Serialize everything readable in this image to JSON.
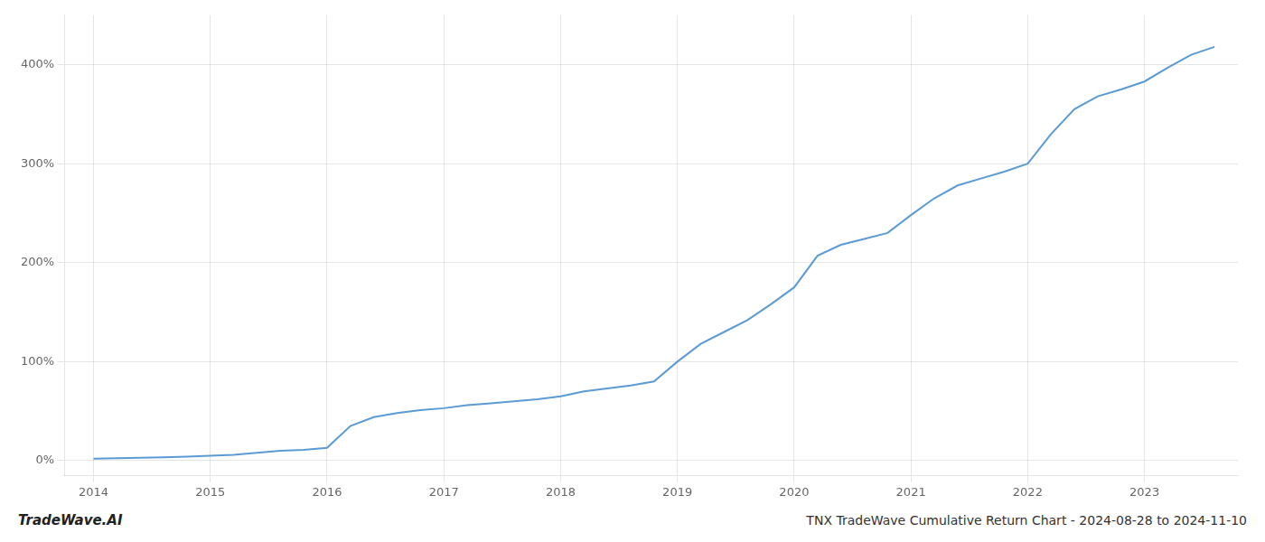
{
  "chart_data": {
    "type": "line",
    "annotations": [
      "TradeWave.AI",
      "TNX TradeWave Cumulative Return Chart - 2024-08-28 to 2024-11-10"
    ],
    "x": [
      2014.0,
      2014.2,
      2014.4,
      2014.6,
      2014.8,
      2015.0,
      2015.2,
      2015.4,
      2015.6,
      2015.8,
      2016.0,
      2016.2,
      2016.4,
      2016.6,
      2016.8,
      2017.0,
      2017.2,
      2017.4,
      2017.6,
      2017.8,
      2018.0,
      2018.2,
      2018.4,
      2018.6,
      2018.8,
      2019.0,
      2019.2,
      2019.4,
      2019.6,
      2019.8,
      2020.0,
      2020.2,
      2020.4,
      2020.6,
      2020.8,
      2021.0,
      2021.2,
      2021.4,
      2021.6,
      2021.8,
      2022.0,
      2022.2,
      2022.4,
      2022.6,
      2022.8,
      2023.0,
      2023.2,
      2023.4,
      2023.6
    ],
    "values": [
      2,
      2.5,
      3,
      3.5,
      4,
      5,
      6,
      8,
      10,
      11,
      13,
      35,
      44,
      48,
      51,
      53,
      56,
      58,
      60,
      62,
      65,
      70,
      73,
      76,
      80,
      100,
      118,
      130,
      142,
      158,
      175,
      207,
      218,
      224,
      230,
      248,
      265,
      278,
      285,
      292,
      300,
      330,
      355,
      368,
      375,
      383,
      397,
      410,
      418
    ],
    "color": "#5b9bd5",
    "xlim": [
      2013.75,
      2023.8
    ],
    "xticks": [
      2014,
      2015,
      2016,
      2017,
      2018,
      2019,
      2020,
      2021,
      2022,
      2023
    ],
    "ylim": [
      -15,
      450
    ],
    "yticks": [
      {
        "value": 0,
        "label": "0%"
      },
      {
        "value": 100,
        "label": "100%"
      },
      {
        "value": 200,
        "label": "200%"
      },
      {
        "value": 300,
        "label": "300%"
      },
      {
        "value": 400,
        "label": "400%"
      }
    ],
    "grid": true
  }
}
